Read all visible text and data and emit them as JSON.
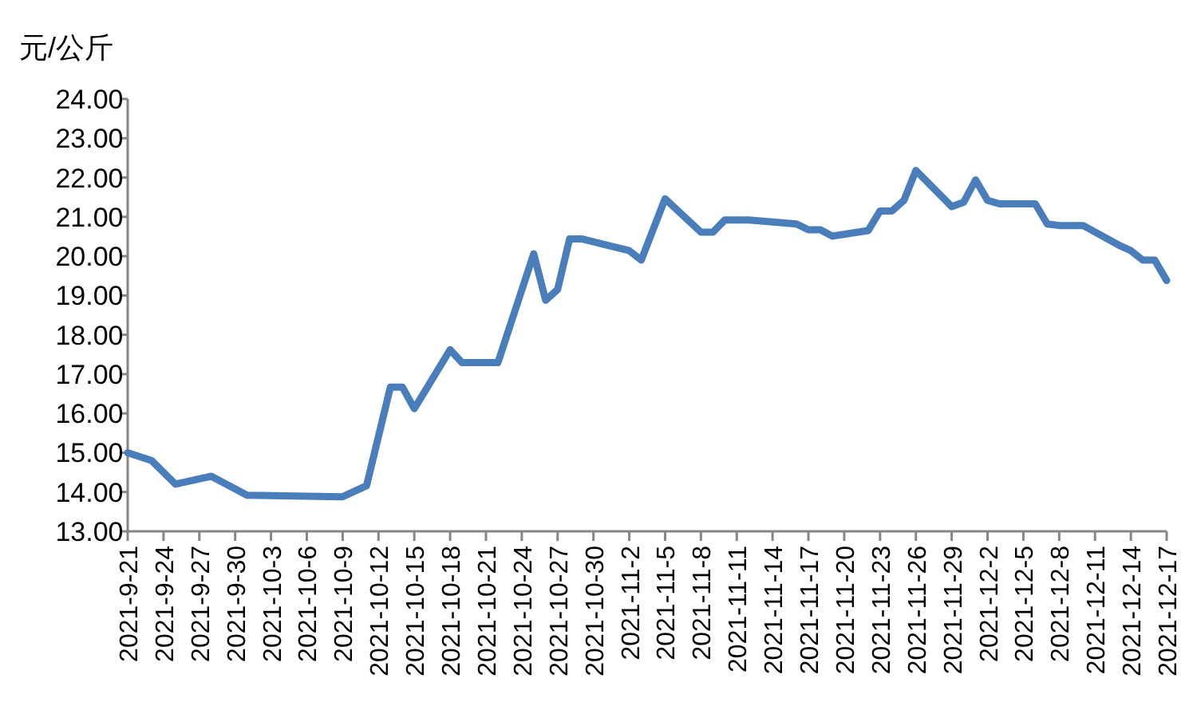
{
  "chart_data": {
    "type": "line",
    "ylabel": "元/公斤",
    "x": [
      "2021-09-21",
      "2021-09-23",
      "2021-09-25",
      "2021-09-28",
      "2021-10-01",
      "2021-10-09",
      "2021-10-11",
      "2021-10-13",
      "2021-10-14",
      "2021-10-15",
      "2021-10-18",
      "2021-10-19",
      "2021-10-22",
      "2021-10-25",
      "2021-10-26",
      "2021-10-27",
      "2021-10-28",
      "2021-10-29",
      "2021-11-02",
      "2021-11-03",
      "2021-11-05",
      "2021-11-08",
      "2021-11-09",
      "2021-11-10",
      "2021-11-12",
      "2021-11-16",
      "2021-11-17",
      "2021-11-18",
      "2021-11-19",
      "2021-11-22",
      "2021-11-23",
      "2021-11-24",
      "2021-11-25",
      "2021-11-26",
      "2021-11-29",
      "2021-11-30",
      "2021-12-01",
      "2021-12-02",
      "2021-12-03",
      "2021-12-06",
      "2021-12-07",
      "2021-12-08",
      "2021-12-10",
      "2021-12-13",
      "2021-12-14",
      "2021-12-15",
      "2021-12-16",
      "2021-12-17"
    ],
    "series": [
      {
        "color": "#4a7ebb",
        "values": [
          15.0,
          14.8,
          14.2,
          14.4,
          13.92,
          13.88,
          14.16,
          16.67,
          16.67,
          16.12,
          17.62,
          17.29,
          17.29,
          20.06,
          18.88,
          19.15,
          20.44,
          20.44,
          20.14,
          19.9,
          21.46,
          20.61,
          20.61,
          20.92,
          20.92,
          20.82,
          20.67,
          20.67,
          20.51,
          20.65,
          21.15,
          21.15,
          21.42,
          22.18,
          21.26,
          21.37,
          21.94,
          21.42,
          21.33,
          21.33,
          20.82,
          20.78,
          20.78,
          20.28,
          20.14,
          19.9,
          19.9,
          19.38
        ]
      }
    ],
    "xlim": [
      "2021-09-21",
      "2021-12-17"
    ],
    "xticks": [
      {
        "value": "2021-09-21",
        "label": "2021-9-21"
      },
      {
        "value": "2021-09-24",
        "label": "2021-9-24"
      },
      {
        "value": "2021-09-27",
        "label": "2021-9-27"
      },
      {
        "value": "2021-09-30",
        "label": "2021-9-30"
      },
      {
        "value": "2021-10-03",
        "label": "2021-10-3"
      },
      {
        "value": "2021-10-06",
        "label": "2021-10-6"
      },
      {
        "value": "2021-10-09",
        "label": "2021-10-9"
      },
      {
        "value": "2021-10-12",
        "label": "2021-10-12"
      },
      {
        "value": "2021-10-15",
        "label": "2021-10-15"
      },
      {
        "value": "2021-10-18",
        "label": "2021-10-18"
      },
      {
        "value": "2021-10-21",
        "label": "2021-10-21"
      },
      {
        "value": "2021-10-24",
        "label": "2021-10-24"
      },
      {
        "value": "2021-10-27",
        "label": "2021-10-27"
      },
      {
        "value": "2021-10-30",
        "label": "2021-10-30"
      },
      {
        "value": "2021-11-02",
        "label": "2021-11-2"
      },
      {
        "value": "2021-11-05",
        "label": "2021-11-5"
      },
      {
        "value": "2021-11-08",
        "label": "2021-11-8"
      },
      {
        "value": "2021-11-11",
        "label": "2021-11-11"
      },
      {
        "value": "2021-11-14",
        "label": "2021-11-14"
      },
      {
        "value": "2021-11-17",
        "label": "2021-11-17"
      },
      {
        "value": "2021-11-20",
        "label": "2021-11-20"
      },
      {
        "value": "2021-11-23",
        "label": "2021-11-23"
      },
      {
        "value": "2021-11-26",
        "label": "2021-11-26"
      },
      {
        "value": "2021-11-29",
        "label": "2021-11-29"
      },
      {
        "value": "2021-12-02",
        "label": "2021-12-2"
      },
      {
        "value": "2021-12-05",
        "label": "2021-12-5"
      },
      {
        "value": "2021-12-08",
        "label": "2021-12-8"
      },
      {
        "value": "2021-12-11",
        "label": "2021-12-11"
      },
      {
        "value": "2021-12-14",
        "label": "2021-12-14"
      },
      {
        "value": "2021-12-17",
        "label": "2021-12-17"
      }
    ],
    "ylim": [
      13,
      24
    ],
    "yticks": [
      {
        "value": 13,
        "label": "13.00"
      },
      {
        "value": 14,
        "label": "14.00"
      },
      {
        "value": 15,
        "label": "15.00"
      },
      {
        "value": 16,
        "label": "16.00"
      },
      {
        "value": 17,
        "label": "17.00"
      },
      {
        "value": 18,
        "label": "18.00"
      },
      {
        "value": 19,
        "label": "19.00"
      },
      {
        "value": 20,
        "label": "20.00"
      },
      {
        "value": 21,
        "label": "21.00"
      },
      {
        "value": 22,
        "label": "22.00"
      },
      {
        "value": 23,
        "label": "23.00"
      },
      {
        "value": 24,
        "label": "24.00"
      }
    ],
    "line_style": "solid",
    "marker": "none"
  }
}
